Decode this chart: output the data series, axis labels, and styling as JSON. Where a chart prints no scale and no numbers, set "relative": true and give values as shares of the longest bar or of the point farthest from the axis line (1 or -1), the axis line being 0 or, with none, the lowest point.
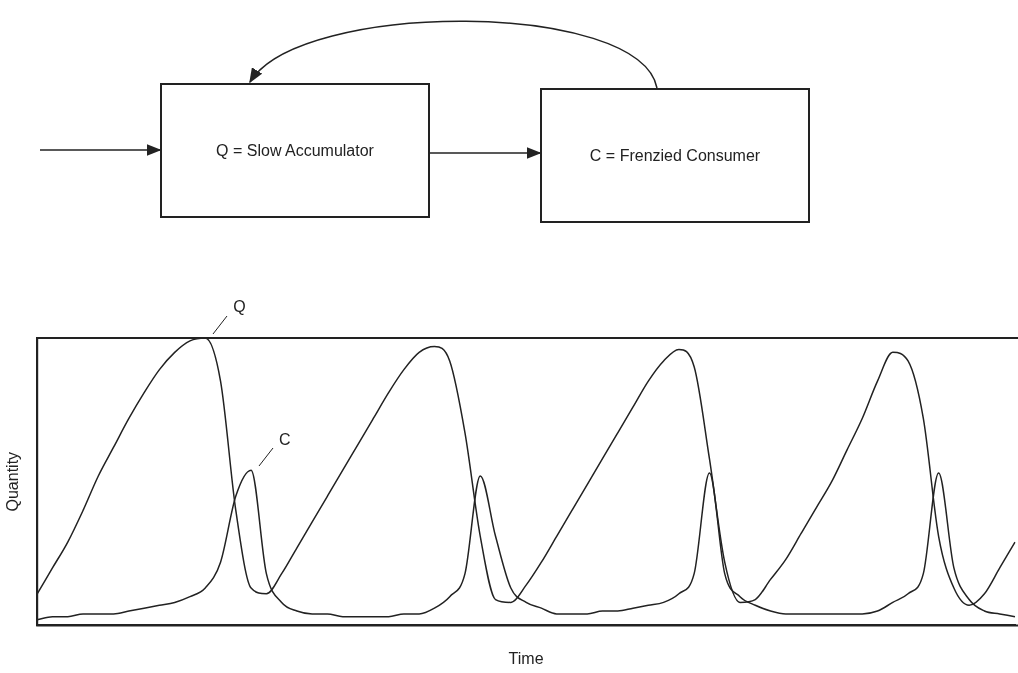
{
  "chart_data": {
    "type": "line",
    "relative": true,
    "xlabel": "Time",
    "ylabel": "Quantity",
    "legend": false,
    "grid": false,
    "marker": "none",
    "line_style": "solid",
    "annotations": [
      "Q = Slow Accumulator",
      "C = Frenzied Consumer"
    ],
    "categories": [
      null,
      null,
      null,
      null,
      null,
      null,
      null,
      null,
      null,
      null,
      null,
      null,
      null,
      null,
      null,
      null,
      null,
      null,
      null,
      null,
      null,
      null,
      null,
      null,
      null,
      null,
      null,
      null,
      null,
      null,
      null,
      null,
      null,
      null,
      null,
      null,
      null,
      null,
      null,
      null,
      null,
      null,
      null,
      null,
      null,
      null,
      null,
      null,
      null,
      null,
      null,
      null,
      null,
      null,
      null,
      null,
      null,
      null,
      null,
      null,
      null,
      null,
      null,
      null,
      null
    ],
    "series": [
      {
        "name": "Q",
        "color": "#222222",
        "values": [
          0.11,
          0.2,
          0.29,
          0.4,
          0.52,
          0.62,
          0.72,
          0.81,
          0.89,
          0.95,
          0.99,
          1.0,
          0.85,
          0.4,
          0.13,
          0.11,
          0.18,
          0.27,
          0.36,
          0.45,
          0.54,
          0.63,
          0.72,
          0.81,
          0.89,
          0.95,
          0.97,
          0.92,
          0.67,
          0.31,
          0.09,
          0.08,
          0.14,
          0.22,
          0.31,
          0.4,
          0.49,
          0.58,
          0.67,
          0.76,
          0.85,
          0.92,
          0.96,
          0.9,
          0.58,
          0.22,
          0.08,
          0.09,
          0.16,
          0.23,
          0.32,
          0.41,
          0.5,
          0.61,
          0.72,
          0.85,
          0.95,
          0.92,
          0.72,
          0.31,
          0.13,
          0.07,
          0.11,
          0.2,
          0.29
        ]
      },
      {
        "name": "C",
        "color": "#222222",
        "values": [
          0.02,
          0.03,
          0.03,
          0.04,
          0.04,
          0.04,
          0.05,
          0.06,
          0.07,
          0.08,
          0.1,
          0.13,
          0.22,
          0.45,
          0.54,
          0.18,
          0.08,
          0.05,
          0.04,
          0.04,
          0.03,
          0.03,
          0.03,
          0.03,
          0.04,
          0.04,
          0.06,
          0.1,
          0.18,
          0.52,
          0.31,
          0.13,
          0.08,
          0.06,
          0.04,
          0.04,
          0.04,
          0.05,
          0.05,
          0.06,
          0.07,
          0.08,
          0.11,
          0.18,
          0.53,
          0.18,
          0.1,
          0.07,
          0.05,
          0.04,
          0.04,
          0.04,
          0.04,
          0.04,
          0.04,
          0.05,
          0.08,
          0.11,
          0.18,
          0.53,
          0.2,
          0.09,
          0.05,
          0.04,
          0.03
        ]
      }
    ]
  }
}
